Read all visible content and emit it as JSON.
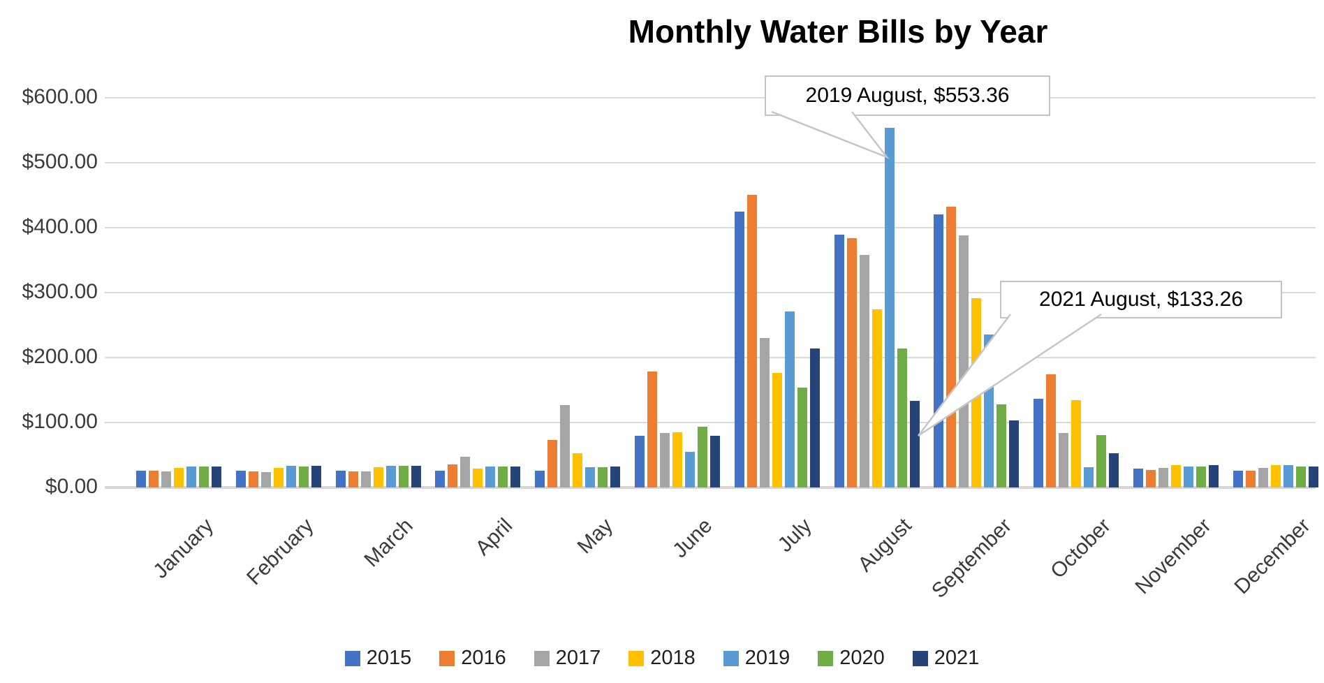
{
  "chart_data": {
    "type": "bar",
    "title": "Monthly Water Bills by Year",
    "categories": [
      "January",
      "February",
      "March",
      "April",
      "May",
      "June",
      "July",
      "August",
      "September",
      "October",
      "November",
      "December"
    ],
    "series": [
      {
        "name": "2015",
        "color": "#4472C4",
        "values": [
          26,
          26,
          26,
          26,
          26,
          80,
          425,
          389,
          420,
          137,
          29,
          26
        ]
      },
      {
        "name": "2016",
        "color": "#ED7D31",
        "values": [
          26,
          25,
          25,
          36,
          73,
          179,
          451,
          384,
          432,
          174,
          27,
          26
        ]
      },
      {
        "name": "2017",
        "color": "#A5A5A5",
        "values": [
          25,
          24,
          25,
          47,
          127,
          84,
          230,
          358,
          388,
          84,
          30,
          30
        ]
      },
      {
        "name": "2018",
        "color": "#FFC000",
        "values": [
          30,
          30,
          31,
          29,
          53,
          85,
          176,
          274,
          291,
          134,
          34,
          34
        ]
      },
      {
        "name": "2019",
        "color": "#5B9BD5",
        "values": [
          32,
          33,
          33,
          32,
          31,
          55,
          271,
          553.36,
          236,
          31,
          32,
          34
        ]
      },
      {
        "name": "2020",
        "color": "#70AD47",
        "values": [
          32,
          32,
          33,
          32,
          31,
          94,
          154,
          214,
          128,
          81,
          32,
          32
        ]
      },
      {
        "name": "2021",
        "color": "#264478",
        "values": [
          32,
          33,
          33,
          32,
          32,
          80,
          214,
          133.26,
          103,
          53,
          34,
          32
        ]
      }
    ],
    "y_axis": {
      "min": 0,
      "max": 600,
      "step": 100,
      "tick_labels": [
        "$0.00",
        "$100.00",
        "$200.00",
        "$300.00",
        "$400.00",
        "$500.00",
        "$600.00"
      ]
    },
    "grid": true,
    "legend_position": "bottom",
    "annotations": [
      {
        "text": "2019 August, $553.36",
        "series": "2019",
        "category": "August",
        "value": 553.36
      },
      {
        "text": "2021 August, $133.26",
        "series": "2021",
        "category": "August",
        "value": 133.26
      }
    ]
  }
}
